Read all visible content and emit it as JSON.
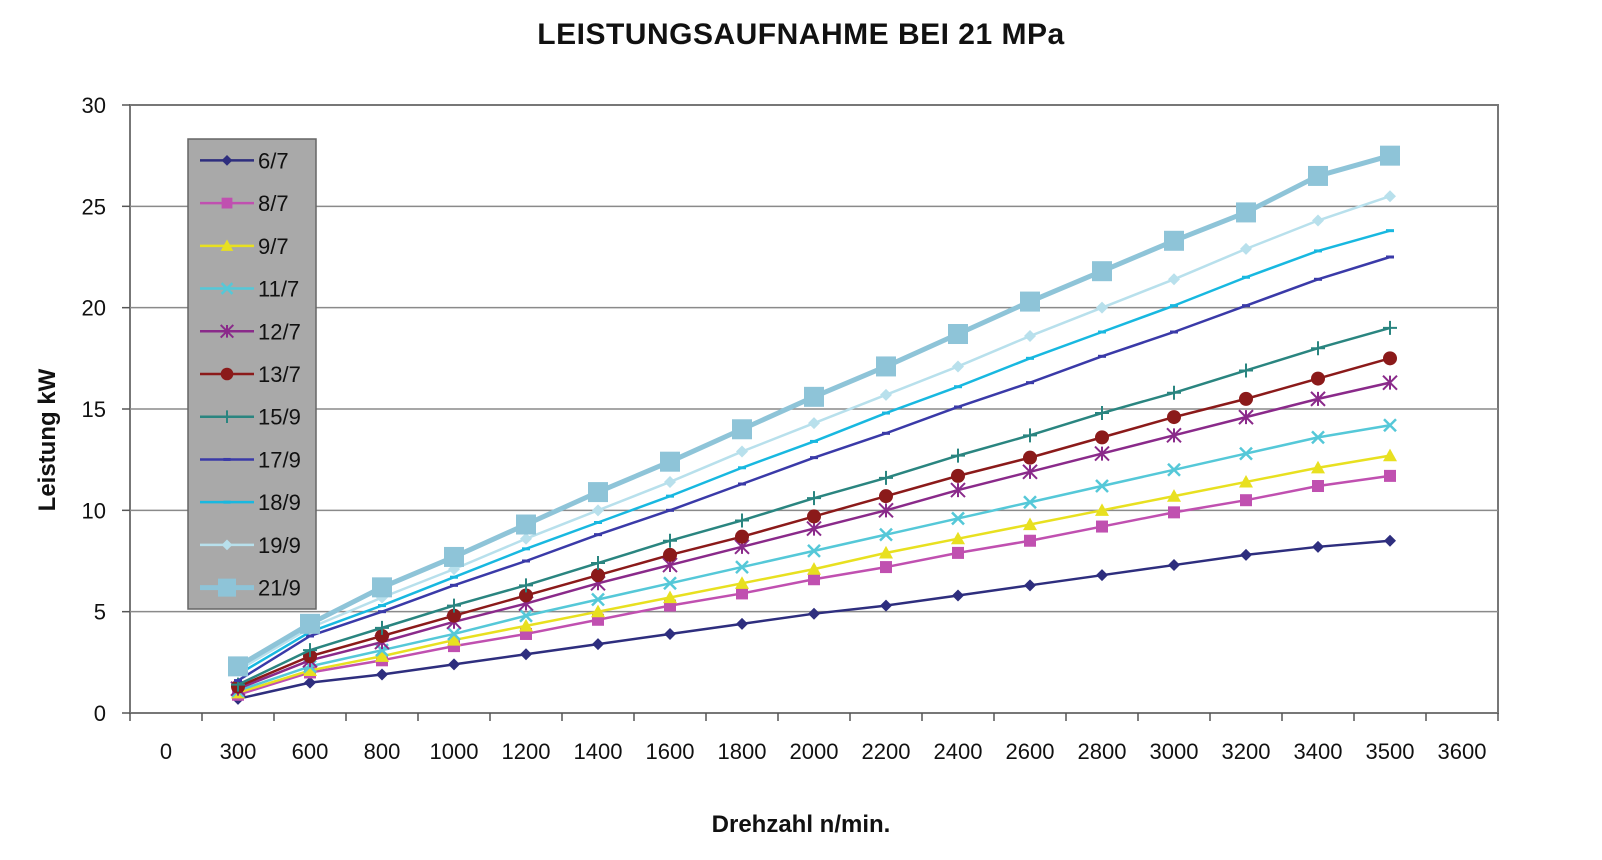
{
  "chart_data": {
    "type": "line",
    "title": "LEISTUNGSAUFNAHME BEI 21 MPa",
    "xlabel": "Drehzahl n/min.",
    "ylabel": "Leistung kW",
    "x_tick_labels": [
      "0",
      "300",
      "600",
      "800",
      "1000",
      "1200",
      "1400",
      "1600",
      "1800",
      "2000",
      "2200",
      "2400",
      "2600",
      "2800",
      "3000",
      "3200",
      "3400",
      "3500",
      "3600"
    ],
    "y_ticks": [
      0,
      5,
      10,
      15,
      20,
      25,
      30
    ],
    "ylim": [
      0,
      30
    ],
    "x": [
      "300",
      "600",
      "800",
      "1000",
      "1200",
      "1400",
      "1600",
      "1800",
      "2000",
      "2200",
      "2400",
      "2600",
      "2800",
      "3000",
      "3200",
      "3400",
      "3500"
    ],
    "grid": "horizontal",
    "legend_position": "top-left",
    "series": [
      {
        "name": "6/7",
        "color": "#2e2e7e",
        "marker": "diamond",
        "values": [
          0.7,
          1.5,
          1.9,
          2.4,
          2.9,
          3.4,
          3.9,
          4.4,
          4.9,
          5.3,
          5.8,
          6.3,
          6.8,
          7.3,
          7.8,
          8.2,
          8.5
        ]
      },
      {
        "name": "8/7",
        "color": "#c050b0",
        "marker": "square",
        "values": [
          0.9,
          2.0,
          2.6,
          3.3,
          3.9,
          4.6,
          5.3,
          5.9,
          6.6,
          7.2,
          7.9,
          8.5,
          9.2,
          9.9,
          10.5,
          11.2,
          11.7
        ]
      },
      {
        "name": "9/7",
        "color": "#e8e020",
        "marker": "triangle",
        "values": [
          1.0,
          2.1,
          2.8,
          3.6,
          4.3,
          5.0,
          5.7,
          6.4,
          7.1,
          7.9,
          8.6,
          9.3,
          10.0,
          10.7,
          11.4,
          12.1,
          12.7
        ]
      },
      {
        "name": "11/7",
        "color": "#55c8d8",
        "marker": "x",
        "values": [
          1.1,
          2.3,
          3.1,
          3.9,
          4.8,
          5.6,
          6.4,
          7.2,
          8.0,
          8.8,
          9.6,
          10.4,
          11.2,
          12.0,
          12.8,
          13.6,
          14.2
        ]
      },
      {
        "name": "12/7",
        "color": "#8a2a8a",
        "marker": "star",
        "values": [
          1.2,
          2.6,
          3.5,
          4.5,
          5.4,
          6.4,
          7.3,
          8.2,
          9.1,
          10.0,
          11.0,
          11.9,
          12.8,
          13.7,
          14.6,
          15.5,
          16.3
        ]
      },
      {
        "name": "13/7",
        "color": "#8b1a1a",
        "marker": "circle",
        "values": [
          1.3,
          2.8,
          3.8,
          4.8,
          5.8,
          6.8,
          7.8,
          8.7,
          9.7,
          10.7,
          11.7,
          12.6,
          13.6,
          14.6,
          15.5,
          16.5,
          17.5
        ]
      },
      {
        "name": "15/9",
        "color": "#2a8580",
        "marker": "plus",
        "values": [
          1.4,
          3.1,
          4.2,
          5.3,
          6.3,
          7.4,
          8.5,
          9.5,
          10.6,
          11.6,
          12.7,
          13.7,
          14.8,
          15.8,
          16.9,
          18.0,
          19.0
        ]
      },
      {
        "name": "17/9",
        "color": "#3a3aa8",
        "marker": "dash",
        "values": [
          1.6,
          3.8,
          5.0,
          6.3,
          7.5,
          8.8,
          10.0,
          11.3,
          12.6,
          13.8,
          15.1,
          16.3,
          17.6,
          18.8,
          20.1,
          21.4,
          22.5
        ]
      },
      {
        "name": "18/9",
        "color": "#18b8e0",
        "marker": "dash",
        "values": [
          1.9,
          4.0,
          5.3,
          6.7,
          8.1,
          9.4,
          10.7,
          12.1,
          13.4,
          14.8,
          16.1,
          17.5,
          18.8,
          20.1,
          21.5,
          22.8,
          23.8
        ]
      },
      {
        "name": "19/9",
        "color": "#b8e0ec",
        "marker": "diamond",
        "values": [
          2.1,
          4.2,
          5.7,
          7.1,
          8.6,
          10.0,
          11.4,
          12.9,
          14.3,
          15.7,
          17.1,
          18.6,
          20.0,
          21.4,
          22.9,
          24.3,
          25.5
        ]
      },
      {
        "name": "21/9",
        "color": "#8ec4d8",
        "marker": "bigsquare",
        "values": [
          2.3,
          4.4,
          6.2,
          7.7,
          9.3,
          10.9,
          12.4,
          14.0,
          15.6,
          17.1,
          18.7,
          20.3,
          21.8,
          23.3,
          24.7,
          26.5,
          27.5
        ]
      }
    ]
  }
}
